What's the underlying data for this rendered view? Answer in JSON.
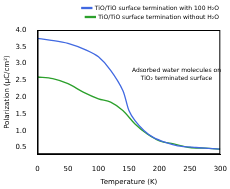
{
  "chart_data": {
    "type": "line",
    "x_label": "Temperature (K)",
    "y_label": "Polarization (μC/cm²)",
    "annotation": "Adsorbed water molecules on TiO₂ terminated surface",
    "xlim": [
      0,
      300
    ],
    "xticks": [
      0,
      50,
      100,
      150,
      200,
      250,
      300
    ],
    "ylim": [
      0.3,
      4.0
    ],
    "yticks": [
      0.5,
      {
        "value": 1.0,
        "label": "1.0"
      },
      1.5,
      {
        "value": 2.0,
        "label": "2.0"
      },
      2.5,
      {
        "value": 3.0,
        "label": "3.0"
      },
      3.5,
      {
        "value": 4.0,
        "label": "4.0"
      }
    ],
    "grid": false,
    "legend": "top",
    "series": [
      {
        "name": "TiO/TiO surface termination with 100 H₂O",
        "color": "#4169e1",
        "x": [
          0,
          20,
          50,
          80,
          100,
          120,
          140,
          150,
          160,
          175,
          190,
          210,
          230,
          260,
          300
        ],
        "values": [
          3.75,
          3.7,
          3.6,
          3.4,
          3.2,
          2.8,
          2.2,
          1.6,
          1.3,
          1.0,
          0.8,
          0.65,
          0.55,
          0.5,
          0.45
        ]
      },
      {
        "name": "TiO/TiO surface termination without H₂O",
        "color": "#2ca02c",
        "x": [
          0,
          25,
          50,
          75,
          100,
          120,
          140,
          160,
          180,
          200,
          225,
          250,
          275,
          300
        ],
        "values": [
          2.6,
          2.55,
          2.4,
          2.15,
          1.95,
          1.85,
          1.6,
          1.2,
          0.9,
          0.7,
          0.6,
          0.5,
          0.48,
          0.45
        ]
      }
    ]
  }
}
